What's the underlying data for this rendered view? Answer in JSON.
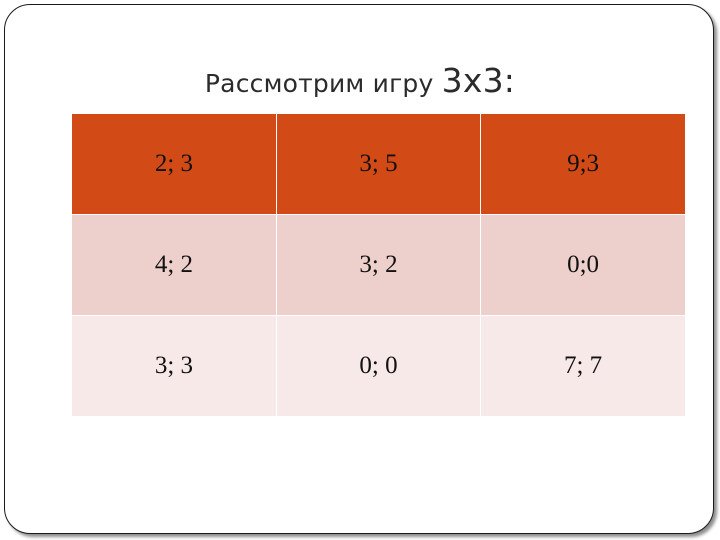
{
  "title": {
    "prefix": "Рассмотрим игру ",
    "game_size": "3х3:"
  },
  "payoff_matrix": [
    [
      "2; 3",
      "3; 5",
      "9;3"
    ],
    [
      "4; 2",
      "3; 2",
      "0;0"
    ],
    [
      "3; 3",
      "0; 0",
      "7; 7"
    ]
  ],
  "colors": {
    "header_row": "#d24a16",
    "band_dark": "#edd0cc",
    "band_light": "#f6e9e7"
  }
}
